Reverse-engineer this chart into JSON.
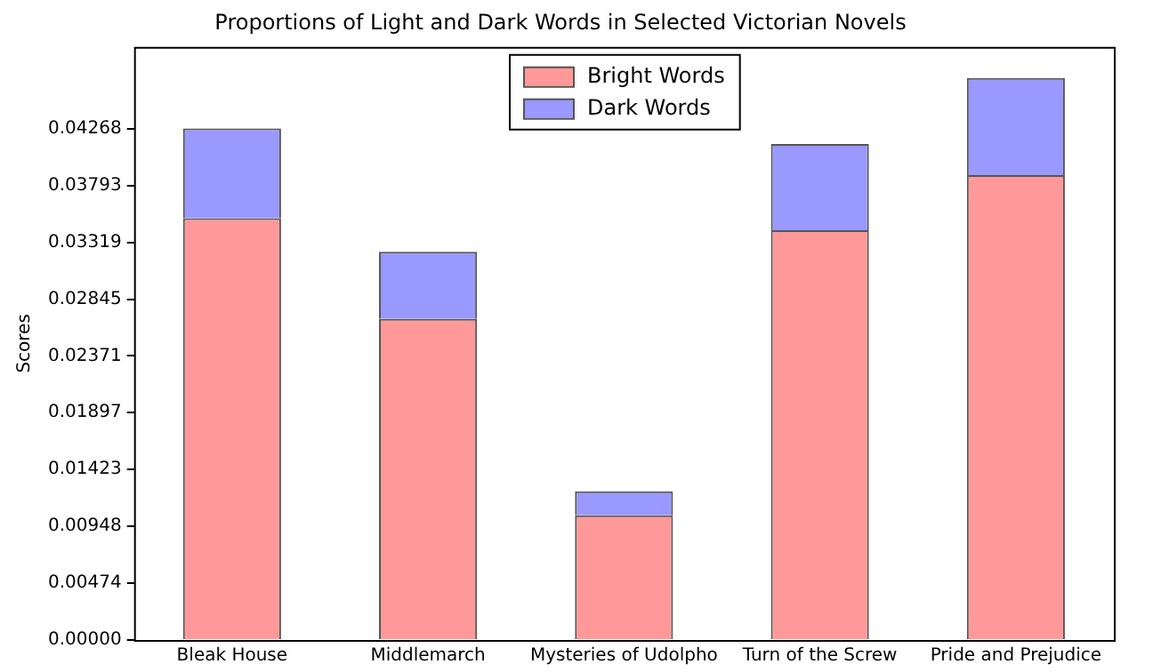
{
  "chart_data": {
    "type": "bar",
    "title": "Proportions of Light and Dark Words in Selected Victorian Novels",
    "ylabel": "Scores",
    "categories": [
      "Bleak House",
      "Middlemarch",
      "Mysteries of Udolpho",
      "Turn of the Screw",
      "Pride and Prejudice"
    ],
    "stacked": true,
    "series": [
      {
        "name": "Bright Words",
        "color": "#ff9999",
        "values": [
          0.0352,
          0.0268,
          0.0104,
          0.0342,
          0.0388
        ]
      },
      {
        "name": "Dark Words",
        "color": "#9999ff",
        "values": [
          0.0075,
          0.0056,
          0.002,
          0.0072,
          0.0081
        ]
      }
    ],
    "ylim": [
      0,
      0.0495
    ],
    "yticks": [
      {
        "value": 0,
        "label": "0.00000"
      },
      0.00474,
      0.00948,
      0.01423,
      0.01897,
      0.02371,
      0.02845,
      0.03319,
      0.03793,
      0.04268
    ],
    "grid": false,
    "legend": "top"
  }
}
